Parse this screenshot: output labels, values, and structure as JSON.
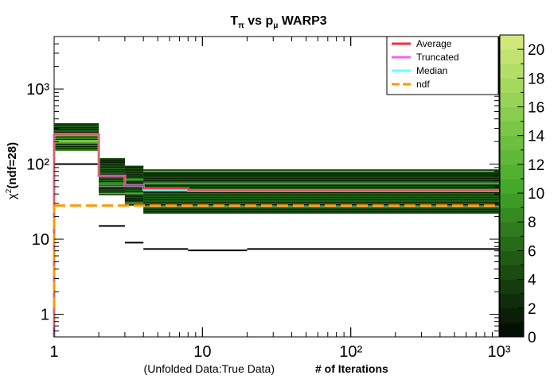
{
  "title_main": "T",
  "title_sub1": "π",
  "title_mid": " vs p",
  "title_sub2": "μ",
  "title_end": " WARP3",
  "xlabel_left": "(Unfolded Data:True Data)",
  "xlabel_right": "# of Iterations",
  "ylabel_main": "χ",
  "ylabel_sup": "2",
  "ylabel_rest": "(ndf=28)",
  "colors": {
    "average": "#ee3333",
    "truncated": "#ee66ee",
    "median": "#66ffff",
    "ndf": "#ff9900"
  },
  "chart_data": {
    "type": "heatmap",
    "x_scale": "log",
    "y_scale": "log",
    "xlim": [
      1,
      1000
    ],
    "ylim": [
      0.5,
      5000
    ],
    "x_ticks": [
      1,
      10,
      100,
      1000
    ],
    "x_tick_labels": [
      "1",
      "10",
      "10²",
      "10³"
    ],
    "y_ticks": [
      1,
      10,
      100,
      1000
    ],
    "y_tick_labels": [
      "1",
      "10",
      "10²",
      "10³"
    ],
    "z_range": [
      0,
      21
    ],
    "z_tick_labels": [
      "0",
      "2",
      "4",
      "6",
      "8",
      "10",
      "12",
      "14",
      "16",
      "18",
      "20"
    ],
    "legend_position": "top-right",
    "legend": [
      "Average",
      "Truncated",
      "Median",
      "ndf"
    ],
    "bands": [
      {
        "x": [
          1,
          2
        ],
        "y": [
          150,
          350
        ],
        "density": 0.95
      },
      {
        "x": [
          2,
          3
        ],
        "y": [
          40,
          120
        ],
        "density": 0.55
      },
      {
        "x": [
          3,
          4
        ],
        "y": [
          28,
          95
        ],
        "density": 0.5
      },
      {
        "x": [
          4,
          1000
        ],
        "y": [
          22,
          85
        ],
        "density": 0.55
      }
    ],
    "outlier_segments": [
      {
        "x": [
          1,
          2
        ],
        "y": 100
      },
      {
        "x": [
          2,
          3
        ],
        "y": 15
      },
      {
        "x": [
          3,
          4
        ],
        "y": 9
      },
      {
        "x": [
          4,
          8
        ],
        "y": 7.4
      },
      {
        "x": [
          8,
          20
        ],
        "y": 7.1
      },
      {
        "x": [
          20,
          1000
        ],
        "y": 7.4
      }
    ],
    "series": [
      {
        "name": "Truncated",
        "step_x": [
          1,
          2,
          3,
          4,
          8,
          1000
        ],
        "step_y": [
          250,
          70,
          52,
          47,
          45,
          45
        ]
      },
      {
        "name": "Median",
        "step_x": [
          1,
          2,
          3,
          4,
          8,
          1000
        ],
        "step_y": [
          250,
          70,
          52,
          45,
          44,
          44
        ]
      },
      {
        "name": "Average",
        "step_x": [
          1,
          2,
          3,
          4,
          8,
          1000
        ],
        "step_y": [
          250,
          70,
          52,
          47,
          45,
          45
        ]
      },
      {
        "name": "ndf",
        "x": [
          1,
          1000
        ],
        "y": [
          28,
          28
        ]
      }
    ]
  }
}
